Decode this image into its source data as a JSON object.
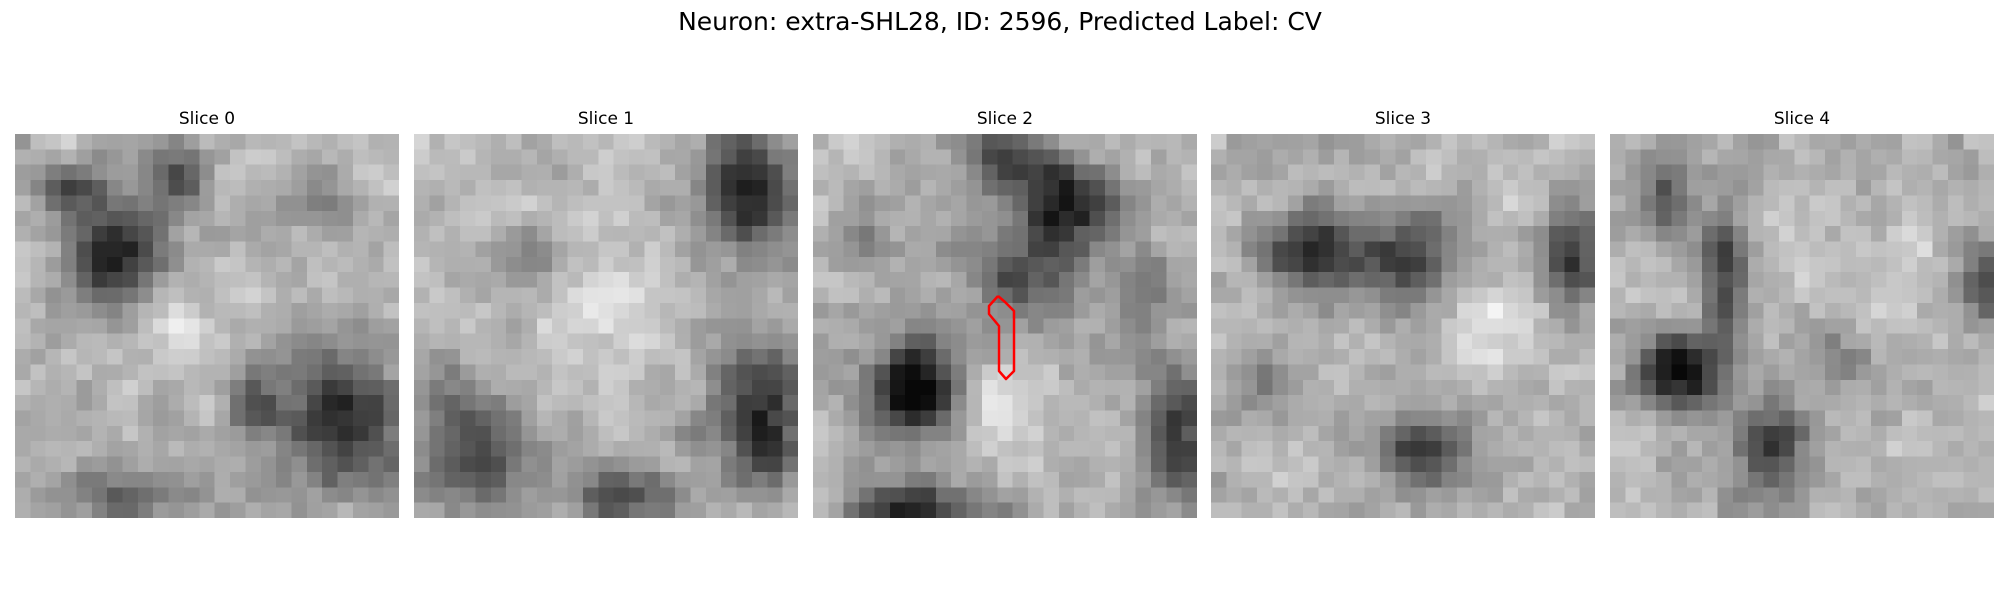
{
  "figure": {
    "title": "Neuron: extra-SHL28, ID: 2596, Predicted Label: CV"
  },
  "slices": [
    {
      "title": "Slice 0",
      "has_roi": false
    },
    {
      "title": "Slice 1",
      "has_roi": false
    },
    {
      "title": "Slice 2",
      "has_roi": true
    },
    {
      "title": "Slice 3",
      "has_roi": false
    },
    {
      "title": "Slice 4",
      "has_roi": false
    }
  ],
  "image": {
    "grid": 25,
    "colormap": "gray",
    "roi_color": "#ff0000"
  }
}
